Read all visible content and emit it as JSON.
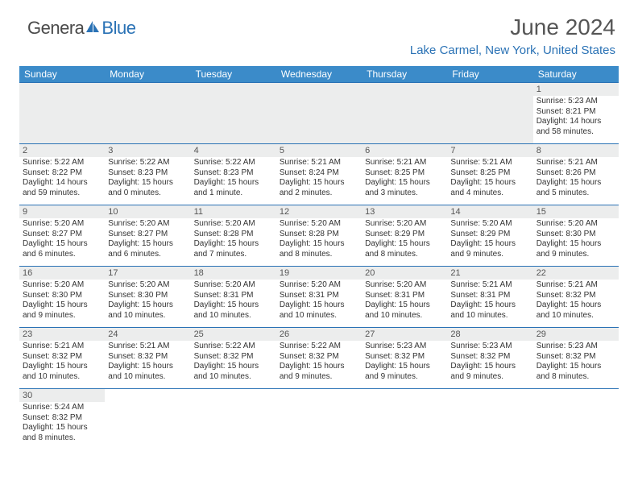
{
  "logo": {
    "part1": "Genera",
    "part2": "Blue"
  },
  "title": "June 2024",
  "location": "Lake Carmel, New York, United States",
  "colors": {
    "header_bg": "#3b8bc9",
    "accent": "#2a72b5",
    "daynum_bg": "#eceded",
    "text": "#333333",
    "title_color": "#555555"
  },
  "day_headers": [
    "Sunday",
    "Monday",
    "Tuesday",
    "Wednesday",
    "Thursday",
    "Friday",
    "Saturday"
  ],
  "weeks": [
    [
      null,
      null,
      null,
      null,
      null,
      null,
      {
        "n": "1",
        "sunrise": "Sunrise: 5:23 AM",
        "sunset": "Sunset: 8:21 PM",
        "daylight": "Daylight: 14 hours and 58 minutes."
      }
    ],
    [
      {
        "n": "2",
        "sunrise": "Sunrise: 5:22 AM",
        "sunset": "Sunset: 8:22 PM",
        "daylight": "Daylight: 14 hours and 59 minutes."
      },
      {
        "n": "3",
        "sunrise": "Sunrise: 5:22 AM",
        "sunset": "Sunset: 8:23 PM",
        "daylight": "Daylight: 15 hours and 0 minutes."
      },
      {
        "n": "4",
        "sunrise": "Sunrise: 5:22 AM",
        "sunset": "Sunset: 8:23 PM",
        "daylight": "Daylight: 15 hours and 1 minute."
      },
      {
        "n": "5",
        "sunrise": "Sunrise: 5:21 AM",
        "sunset": "Sunset: 8:24 PM",
        "daylight": "Daylight: 15 hours and 2 minutes."
      },
      {
        "n": "6",
        "sunrise": "Sunrise: 5:21 AM",
        "sunset": "Sunset: 8:25 PM",
        "daylight": "Daylight: 15 hours and 3 minutes."
      },
      {
        "n": "7",
        "sunrise": "Sunrise: 5:21 AM",
        "sunset": "Sunset: 8:25 PM",
        "daylight": "Daylight: 15 hours and 4 minutes."
      },
      {
        "n": "8",
        "sunrise": "Sunrise: 5:21 AM",
        "sunset": "Sunset: 8:26 PM",
        "daylight": "Daylight: 15 hours and 5 minutes."
      }
    ],
    [
      {
        "n": "9",
        "sunrise": "Sunrise: 5:20 AM",
        "sunset": "Sunset: 8:27 PM",
        "daylight": "Daylight: 15 hours and 6 minutes."
      },
      {
        "n": "10",
        "sunrise": "Sunrise: 5:20 AM",
        "sunset": "Sunset: 8:27 PM",
        "daylight": "Daylight: 15 hours and 6 minutes."
      },
      {
        "n": "11",
        "sunrise": "Sunrise: 5:20 AM",
        "sunset": "Sunset: 8:28 PM",
        "daylight": "Daylight: 15 hours and 7 minutes."
      },
      {
        "n": "12",
        "sunrise": "Sunrise: 5:20 AM",
        "sunset": "Sunset: 8:28 PM",
        "daylight": "Daylight: 15 hours and 8 minutes."
      },
      {
        "n": "13",
        "sunrise": "Sunrise: 5:20 AM",
        "sunset": "Sunset: 8:29 PM",
        "daylight": "Daylight: 15 hours and 8 minutes."
      },
      {
        "n": "14",
        "sunrise": "Sunrise: 5:20 AM",
        "sunset": "Sunset: 8:29 PM",
        "daylight": "Daylight: 15 hours and 9 minutes."
      },
      {
        "n": "15",
        "sunrise": "Sunrise: 5:20 AM",
        "sunset": "Sunset: 8:30 PM",
        "daylight": "Daylight: 15 hours and 9 minutes."
      }
    ],
    [
      {
        "n": "16",
        "sunrise": "Sunrise: 5:20 AM",
        "sunset": "Sunset: 8:30 PM",
        "daylight": "Daylight: 15 hours and 9 minutes."
      },
      {
        "n": "17",
        "sunrise": "Sunrise: 5:20 AM",
        "sunset": "Sunset: 8:30 PM",
        "daylight": "Daylight: 15 hours and 10 minutes."
      },
      {
        "n": "18",
        "sunrise": "Sunrise: 5:20 AM",
        "sunset": "Sunset: 8:31 PM",
        "daylight": "Daylight: 15 hours and 10 minutes."
      },
      {
        "n": "19",
        "sunrise": "Sunrise: 5:20 AM",
        "sunset": "Sunset: 8:31 PM",
        "daylight": "Daylight: 15 hours and 10 minutes."
      },
      {
        "n": "20",
        "sunrise": "Sunrise: 5:20 AM",
        "sunset": "Sunset: 8:31 PM",
        "daylight": "Daylight: 15 hours and 10 minutes."
      },
      {
        "n": "21",
        "sunrise": "Sunrise: 5:21 AM",
        "sunset": "Sunset: 8:31 PM",
        "daylight": "Daylight: 15 hours and 10 minutes."
      },
      {
        "n": "22",
        "sunrise": "Sunrise: 5:21 AM",
        "sunset": "Sunset: 8:32 PM",
        "daylight": "Daylight: 15 hours and 10 minutes."
      }
    ],
    [
      {
        "n": "23",
        "sunrise": "Sunrise: 5:21 AM",
        "sunset": "Sunset: 8:32 PM",
        "daylight": "Daylight: 15 hours and 10 minutes."
      },
      {
        "n": "24",
        "sunrise": "Sunrise: 5:21 AM",
        "sunset": "Sunset: 8:32 PM",
        "daylight": "Daylight: 15 hours and 10 minutes."
      },
      {
        "n": "25",
        "sunrise": "Sunrise: 5:22 AM",
        "sunset": "Sunset: 8:32 PM",
        "daylight": "Daylight: 15 hours and 10 minutes."
      },
      {
        "n": "26",
        "sunrise": "Sunrise: 5:22 AM",
        "sunset": "Sunset: 8:32 PM",
        "daylight": "Daylight: 15 hours and 9 minutes."
      },
      {
        "n": "27",
        "sunrise": "Sunrise: 5:23 AM",
        "sunset": "Sunset: 8:32 PM",
        "daylight": "Daylight: 15 hours and 9 minutes."
      },
      {
        "n": "28",
        "sunrise": "Sunrise: 5:23 AM",
        "sunset": "Sunset: 8:32 PM",
        "daylight": "Daylight: 15 hours and 9 minutes."
      },
      {
        "n": "29",
        "sunrise": "Sunrise: 5:23 AM",
        "sunset": "Sunset: 8:32 PM",
        "daylight": "Daylight: 15 hours and 8 minutes."
      }
    ],
    [
      {
        "n": "30",
        "sunrise": "Sunrise: 5:24 AM",
        "sunset": "Sunset: 8:32 PM",
        "daylight": "Daylight: 15 hours and 8 minutes."
      },
      null,
      null,
      null,
      null,
      null,
      null
    ]
  ]
}
